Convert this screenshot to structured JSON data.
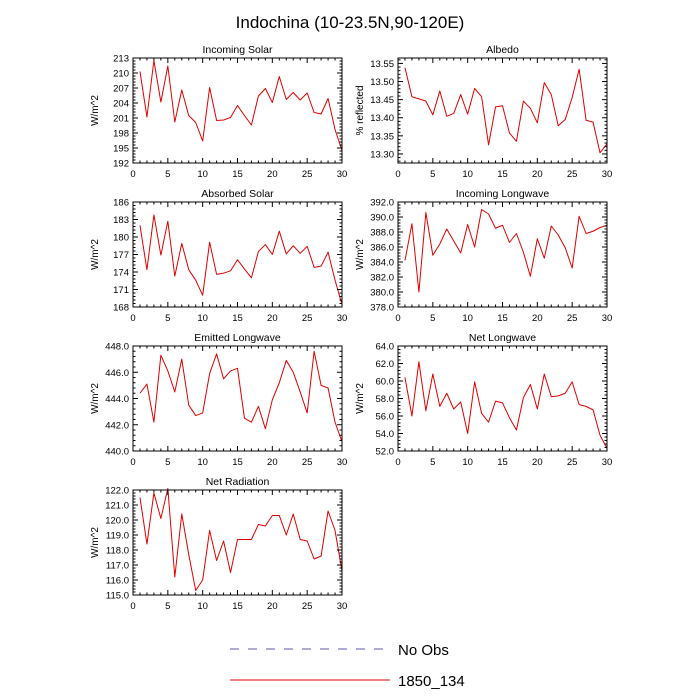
{
  "title": "Indochina (10-23.5N,90-120E)",
  "colors": {
    "obs": "#5a5aa8",
    "model": "#e00000",
    "axis": "#000000"
  },
  "legend": {
    "obs_label": "No Obs",
    "model_label": "1850_134"
  },
  "chart_data": [
    {
      "type": "line",
      "title": "Incoming Solar",
      "ylabel": "W/m^2",
      "xlim": [
        0,
        30
      ],
      "ylim": [
        192,
        213
      ],
      "xticks": [
        0,
        5,
        10,
        15,
        20,
        25,
        30
      ],
      "yticks": [
        "192",
        "195",
        "198",
        "201",
        "204",
        "207",
        "210",
        "213"
      ],
      "x": [
        1,
        2,
        3,
        4,
        5,
        6,
        7,
        8,
        9,
        10,
        11,
        12,
        13,
        14,
        15,
        16,
        17,
        18,
        19,
        20,
        21,
        22,
        23,
        24,
        25,
        26,
        27,
        28,
        29,
        30
      ],
      "series": [
        {
          "name": "1850_134",
          "values": [
            210.3,
            201.2,
            212.5,
            204.2,
            211.4,
            200.2,
            206.6,
            201.5,
            200.1,
            196.4,
            207.1,
            200.5,
            200.6,
            201.1,
            203.5,
            201.5,
            199.6,
            205.4,
            206.9,
            204.1,
            209.3,
            204.7,
            206.1,
            204.6,
            206.0,
            202.1,
            201.8,
            204.9,
            198.7,
            194.5
          ]
        }
      ]
    },
    {
      "type": "line",
      "title": "Albedo",
      "ylabel": "% reflected",
      "xlim": [
        0,
        30
      ],
      "ylim": [
        13.275,
        13.565
      ],
      "xticks": [
        0,
        5,
        10,
        15,
        20,
        25,
        30
      ],
      "yticks": [
        "13.30",
        "13.35",
        "13.40",
        "13.45",
        "13.50",
        "13.55"
      ],
      "x": [
        1,
        2,
        3,
        4,
        5,
        6,
        7,
        8,
        9,
        10,
        11,
        12,
        13,
        14,
        15,
        16,
        17,
        18,
        19,
        20,
        21,
        22,
        23,
        24,
        25,
        26,
        27,
        28,
        29,
        30
      ],
      "series": [
        {
          "name": "1850_134",
          "values": [
            13.538,
            13.458,
            13.452,
            13.446,
            13.408,
            13.474,
            13.404,
            13.412,
            13.464,
            13.41,
            13.481,
            13.458,
            13.325,
            13.43,
            13.433,
            13.358,
            13.335,
            13.446,
            13.426,
            13.386,
            13.497,
            13.464,
            13.378,
            13.395,
            13.456,
            13.534,
            13.393,
            13.388,
            13.303,
            13.328
          ]
        }
      ]
    },
    {
      "type": "line",
      "title": "Absorbed Solar",
      "ylabel": "W/m^2",
      "xlim": [
        0,
        30
      ],
      "ylim": [
        168,
        186
      ],
      "xticks": [
        0,
        5,
        10,
        15,
        20,
        25,
        30
      ],
      "yticks": [
        "168",
        "171",
        "174",
        "177",
        "180",
        "183",
        "186"
      ],
      "x": [
        1,
        2,
        3,
        4,
        5,
        6,
        7,
        8,
        9,
        10,
        11,
        12,
        13,
        14,
        15,
        16,
        17,
        18,
        19,
        20,
        21,
        22,
        23,
        24,
        25,
        26,
        27,
        28,
        29,
        30
      ],
      "series": [
        {
          "name": "1850_134",
          "values": [
            182.0,
            174.4,
            183.8,
            176.9,
            182.7,
            173.3,
            178.9,
            174.4,
            172.6,
            170.0,
            179.1,
            173.6,
            173.8,
            174.2,
            176.1,
            174.5,
            173.0,
            177.5,
            178.7,
            177.0,
            181.0,
            177.1,
            178.5,
            177.2,
            178.4,
            174.8,
            175.0,
            177.4,
            172.6,
            168.4
          ]
        }
      ]
    },
    {
      "type": "line",
      "title": "Incoming Longwave",
      "ylabel": "W/m^2",
      "xlim": [
        0,
        30
      ],
      "ylim": [
        378.0,
        392.0
      ],
      "xticks": [
        0,
        5,
        10,
        15,
        20,
        25,
        30
      ],
      "yticks": [
        "378.0",
        "380.0",
        "382.0",
        "384.0",
        "386.0",
        "388.0",
        "390.0",
        "392.0"
      ],
      "x": [
        1,
        2,
        3,
        4,
        5,
        6,
        7,
        8,
        9,
        10,
        11,
        12,
        13,
        14,
        15,
        16,
        17,
        18,
        19,
        20,
        21,
        22,
        23,
        24,
        25,
        26,
        27,
        28,
        29,
        30
      ],
      "series": [
        {
          "name": "1850_134",
          "values": [
            384.2,
            389.1,
            380.0,
            390.6,
            384.9,
            386.4,
            388.4,
            386.8,
            385.2,
            389.0,
            386.0,
            391.0,
            390.4,
            388.5,
            388.9,
            386.6,
            387.8,
            385.3,
            382.1,
            387.1,
            384.5,
            388.8,
            387.6,
            385.9,
            383.2,
            390.1,
            387.8,
            388.1,
            388.6,
            388.9
          ]
        }
      ]
    },
    {
      "type": "line",
      "title": "Emitted Longwave",
      "ylabel": "W/m^2",
      "xlim": [
        0,
        30
      ],
      "ylim": [
        440.0,
        448.0
      ],
      "xticks": [
        0,
        5,
        10,
        15,
        20,
        25,
        30
      ],
      "yticks": [
        "440.0",
        "442.0",
        "444.0",
        "446.0",
        "448.0"
      ],
      "x": [
        1,
        2,
        3,
        4,
        5,
        6,
        7,
        8,
        9,
        10,
        11,
        12,
        13,
        14,
        15,
        16,
        17,
        18,
        19,
        20,
        21,
        22,
        23,
        24,
        25,
        26,
        27,
        28,
        29,
        30
      ],
      "series": [
        {
          "name": "1850_134",
          "values": [
            444.4,
            445.1,
            442.2,
            447.3,
            446.1,
            444.5,
            447.0,
            443.5,
            442.7,
            442.9,
            445.9,
            447.4,
            445.5,
            446.1,
            446.3,
            442.5,
            442.2,
            443.4,
            441.7,
            443.9,
            445.2,
            446.9,
            446.0,
            444.5,
            442.9,
            447.6,
            445.0,
            444.8,
            442.2,
            440.7
          ]
        }
      ]
    },
    {
      "type": "line",
      "title": "Net Longwave",
      "ylabel": "W/m^2",
      "xlim": [
        0,
        30
      ],
      "ylim": [
        52.0,
        64.0
      ],
      "xticks": [
        0,
        5,
        10,
        15,
        20,
        25,
        30
      ],
      "yticks": [
        "52.0",
        "54.0",
        "56.0",
        "58.0",
        "60.0",
        "62.0",
        "64.0"
      ],
      "x": [
        1,
        2,
        3,
        4,
        5,
        6,
        7,
        8,
        9,
        10,
        11,
        12,
        13,
        14,
        15,
        16,
        17,
        18,
        19,
        20,
        21,
        22,
        23,
        24,
        25,
        26,
        27,
        28,
        29,
        30
      ],
      "series": [
        {
          "name": "1850_134",
          "values": [
            60.4,
            56.0,
            62.2,
            56.6,
            60.8,
            57.1,
            58.6,
            56.8,
            57.6,
            54.0,
            59.9,
            56.3,
            55.3,
            57.7,
            57.5,
            55.8,
            54.4,
            58.1,
            59.6,
            56.8,
            60.8,
            58.2,
            58.3,
            58.6,
            59.9,
            57.3,
            57.1,
            56.7,
            53.8,
            52.3
          ]
        }
      ]
    },
    {
      "type": "line",
      "title": "Net Radiation",
      "ylabel": "W/m^2",
      "xlim": [
        0,
        30
      ],
      "ylim": [
        115.0,
        122.0
      ],
      "xticks": [
        0,
        5,
        10,
        15,
        20,
        25,
        30
      ],
      "yticks": [
        "115.0",
        "116.0",
        "117.0",
        "118.0",
        "119.0",
        "120.0",
        "121.0",
        "122.0"
      ],
      "x": [
        1,
        2,
        3,
        4,
        5,
        6,
        7,
        8,
        9,
        10,
        11,
        12,
        13,
        14,
        15,
        16,
        17,
        18,
        19,
        20,
        21,
        22,
        23,
        24,
        25,
        26,
        27,
        28,
        29,
        30
      ],
      "series": [
        {
          "name": "1850_134",
          "values": [
            121.5,
            118.4,
            121.8,
            120.1,
            122.1,
            116.2,
            120.4,
            117.7,
            115.3,
            116.0,
            119.3,
            117.3,
            118.6,
            116.5,
            118.7,
            118.7,
            118.7,
            119.7,
            119.6,
            120.3,
            120.3,
            119.0,
            120.4,
            118.7,
            118.6,
            117.4,
            117.6,
            120.6,
            119.3,
            116.6
          ]
        }
      ]
    }
  ]
}
